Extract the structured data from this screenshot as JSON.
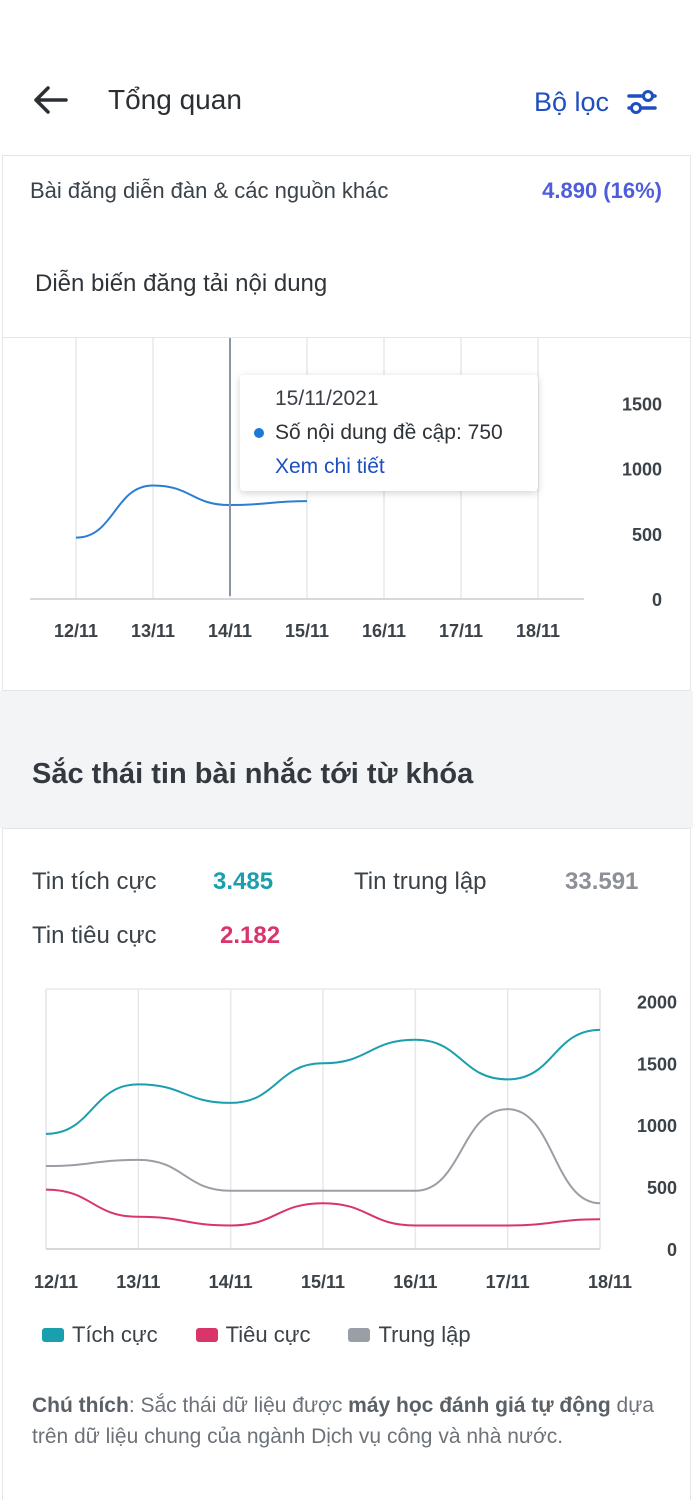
{
  "header": {
    "title": "Tổng quan",
    "filter_label": "Bộ lọc",
    "back_icon": "arrow-left-icon",
    "filter_icon": "sliders-icon"
  },
  "overview": {
    "forum_label": "Bài đăng diễn đàn & các nguồn khác",
    "forum_value": "4.890 (16%)",
    "chart_title": "Diễn biến đăng tải nội dung"
  },
  "tooltip": {
    "date": "15/11/2021",
    "metric": "Số nội dung đề cập: 750",
    "link": "Xem chi tiết"
  },
  "sentiment": {
    "title": "Sắc thái tin bài nhắc tới từ khóa",
    "positive_label": "Tin tích cực",
    "positive_value": "3.485",
    "neutral_label": "Tin trung lập",
    "neutral_value": "33.591",
    "negative_label": "Tin tiêu cực",
    "negative_value": "2.182",
    "legend": [
      "Tích cực",
      "Tiêu cực",
      "Trung lập"
    ],
    "note_prefix": "Chú thích",
    "note_part1": ": Sắc thái dữ liệu được ",
    "note_bold": "máy học đánh giá tự động",
    "note_part2": " dựa trên dữ liệu chung của ngành Dịch vụ công và nhà nước."
  },
  "colors": {
    "positive": "#1a9fae",
    "negative": "#d8356b",
    "neutral": "#9a9ea5",
    "line1": "#2a7fd4",
    "accent": "#1f4fbf"
  },
  "chart_data": [
    {
      "type": "line",
      "title": "Diễn biến đăng tải nội dung",
      "x": [
        "12/11",
        "13/11",
        "14/11",
        "15/11",
        "16/11",
        "17/11",
        "18/11"
      ],
      "series": [
        {
          "values": [
            470,
            870,
            720,
            750,
            null,
            null,
            null
          ]
        }
      ],
      "yticks": [
        0,
        500,
        1000,
        1500
      ],
      "ylim": [
        0,
        2000
      ],
      "y_axis_side": "right",
      "grid": true
    },
    {
      "type": "line",
      "x": [
        "12/11",
        "13/11",
        "14/11",
        "15/11",
        "16/11",
        "17/11",
        "18/11"
      ],
      "series": [
        {
          "name": "Tích cực",
          "values": [
            930,
            1330,
            1180,
            1500,
            1690,
            1370,
            1770
          ]
        },
        {
          "name": "Tiêu cực",
          "values": [
            480,
            260,
            190,
            370,
            190,
            190,
            240
          ]
        },
        {
          "name": "Trung lập",
          "values": [
            670,
            720,
            470,
            470,
            470,
            1130,
            370
          ]
        }
      ],
      "yticks": [
        0,
        500,
        1000,
        1500,
        2000
      ],
      "ylim": [
        0,
        2100
      ],
      "y_axis_side": "right",
      "legend": "bottom",
      "grid": true
    }
  ]
}
